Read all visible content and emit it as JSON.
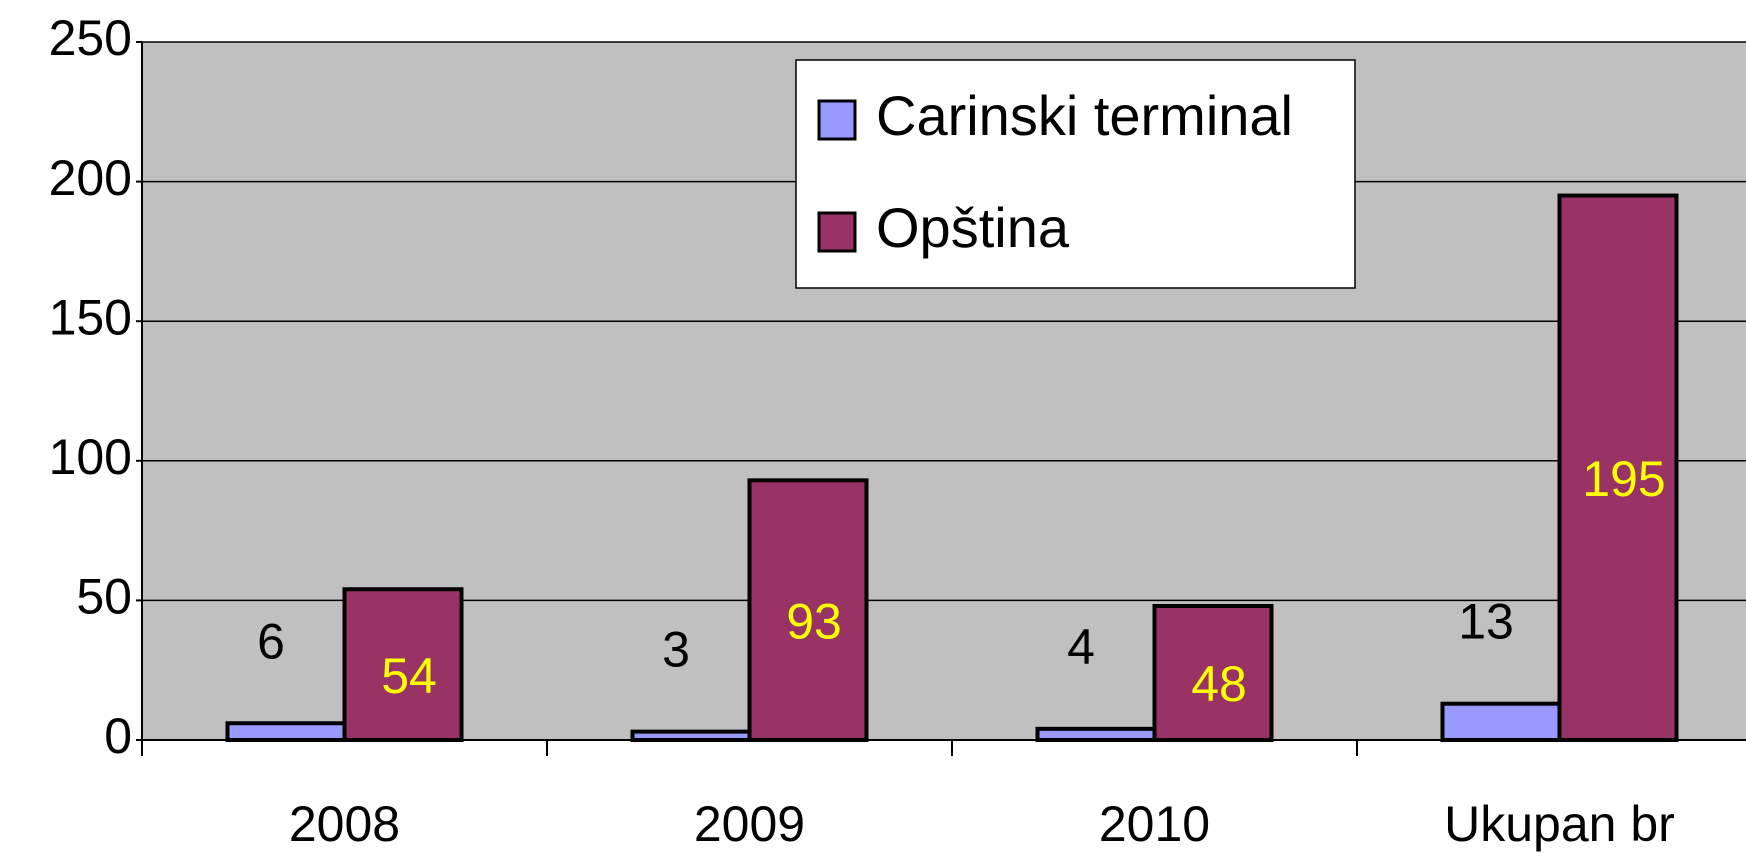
{
  "chart_data": {
    "type": "bar",
    "categories": [
      "2008",
      "2009",
      "2010",
      "Ukupan br"
    ],
    "series": [
      {
        "name": "Carinski terminal",
        "color": "#9999ff",
        "values": [
          6,
          3,
          4,
          13
        ]
      },
      {
        "name": "Opština",
        "color": "#993366",
        "values": [
          54,
          93,
          48,
          195
        ]
      }
    ],
    "ylim": [
      0,
      250
    ],
    "yticks": [
      0,
      50,
      100,
      150,
      200,
      250
    ],
    "grid": true
  }
}
